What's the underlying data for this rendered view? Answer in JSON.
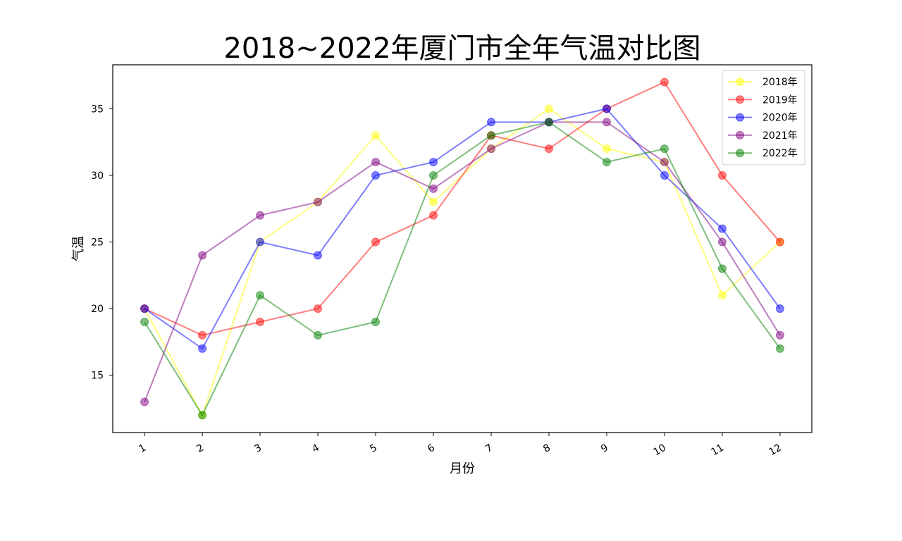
{
  "chart_data": {
    "type": "line",
    "title": "2018~2022年厦门市全年气温对比图",
    "xlabel": "月份",
    "ylabel": "气温",
    "x": [
      1,
      2,
      3,
      4,
      5,
      6,
      7,
      8,
      9,
      10,
      11,
      12
    ],
    "x_tick_labels": [
      "1",
      "2",
      "3",
      "4",
      "5",
      "6",
      "7",
      "8",
      "9",
      "10",
      "11",
      "12"
    ],
    "y_ticks": [
      15,
      20,
      25,
      30,
      35
    ],
    "y_tick_labels": [
      "15",
      "20",
      "25",
      "30",
      "35"
    ],
    "xlim": [
      0.45,
      12.55
    ],
    "ylim": [
      10.7,
      38.3
    ],
    "grid": false,
    "legend_position": "top-right",
    "series": [
      {
        "name": "2018年",
        "color": "#ffff00",
        "values": [
          20,
          12,
          25,
          28,
          33,
          28,
          32,
          35,
          32,
          31,
          21,
          25
        ]
      },
      {
        "name": "2019年",
        "color": "#ff0000",
        "values": [
          20,
          18,
          19,
          20,
          25,
          27,
          33,
          32,
          35,
          37,
          30,
          25
        ]
      },
      {
        "name": "2020年",
        "color": "#0000ff",
        "values": [
          20,
          17,
          25,
          24,
          30,
          31,
          34,
          34,
          35,
          30,
          26,
          20
        ]
      },
      {
        "name": "2021年",
        "color": "#800080",
        "values": [
          13,
          24,
          27,
          28,
          31,
          29,
          32,
          34,
          34,
          31,
          25,
          18
        ]
      },
      {
        "name": "2022年",
        "color": "#008000",
        "values": [
          19,
          12,
          21,
          18,
          19,
          30,
          33,
          34,
          31,
          32,
          23,
          17
        ]
      }
    ]
  }
}
